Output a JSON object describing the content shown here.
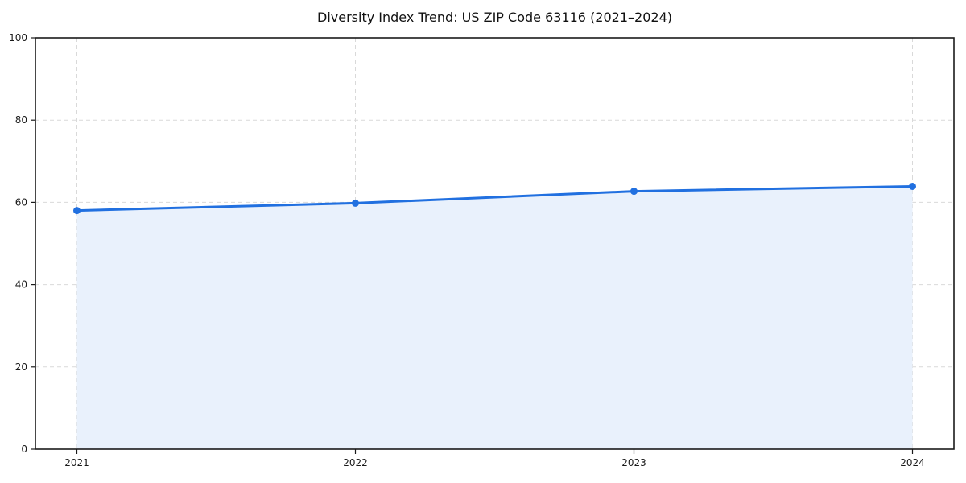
{
  "chart_data": {
    "type": "area",
    "title": "Diversity Index Trend: US ZIP Code 63116 (2021–2024)",
    "x": [
      "2021",
      "2022",
      "2023",
      "2024"
    ],
    "values": [
      58.0,
      59.8,
      62.7,
      63.9
    ],
    "series_name": "Diversity Index",
    "xlabel": "",
    "ylabel": "",
    "ylim": [
      0,
      100
    ],
    "yticks": [
      0,
      20,
      40,
      60,
      80,
      100
    ],
    "xticks": [
      "2021",
      "2022",
      "2023",
      "2024"
    ],
    "grid": true,
    "grid_style": "dashed",
    "legend": "none",
    "line_color": "#2170e0",
    "marker_color": "#2170e0",
    "fill_color": "#e9f1fc",
    "frame_color": "#1a1a1a",
    "background_color": "#ffffff"
  }
}
